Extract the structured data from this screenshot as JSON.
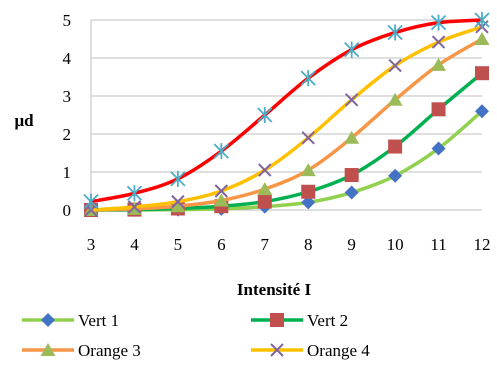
{
  "chart_data": {
    "type": "line",
    "title": "",
    "xlabel": "Intensité I",
    "ylabel": "μd",
    "x": [
      3,
      4,
      5,
      6,
      7,
      8,
      9,
      10,
      11,
      12
    ],
    "xlim": [
      3,
      12
    ],
    "ylim": [
      0,
      5
    ],
    "xticks": [
      3,
      4,
      5,
      6,
      7,
      8,
      9,
      10,
      11,
      12
    ],
    "yticks": [
      0,
      1,
      2,
      3,
      4,
      5
    ],
    "grid": "horizontal",
    "legend_position": "bottom",
    "series": [
      {
        "name": "Vert 1",
        "color": "#92d050",
        "marker": "diamond",
        "marker_color": "#4472c4",
        "values": [
          0.0,
          0.0,
          0.01,
          0.03,
          0.09,
          0.2,
          0.46,
          0.9,
          1.62,
          2.6
        ]
      },
      {
        "name": "Vert 2",
        "color": "#00b050",
        "marker": "square",
        "marker_color": "#c0504d",
        "values": [
          0.0,
          0.01,
          0.04,
          0.1,
          0.22,
          0.48,
          0.92,
          1.67,
          2.65,
          3.6
        ]
      },
      {
        "name": "Orange 3",
        "color": "#f79646",
        "marker": "triangle",
        "marker_color": "#9bbb59",
        "values": [
          0.0,
          0.03,
          0.1,
          0.25,
          0.55,
          1.05,
          1.9,
          2.9,
          3.82,
          4.5
        ]
      },
      {
        "name": "Orange 4",
        "color": "#ffc000",
        "marker": "x",
        "marker_color": "#8064a2",
        "values": [
          0.0,
          0.08,
          0.22,
          0.5,
          1.05,
          1.9,
          2.9,
          3.8,
          4.42,
          4.82
        ]
      },
      {
        "name": "",
        "color": "#ff0000",
        "marker": "star",
        "marker_color": "#4bacc6",
        "values": [
          0.22,
          0.44,
          0.82,
          1.55,
          2.5,
          3.47,
          4.22,
          4.67,
          4.93,
          5.0
        ]
      }
    ]
  }
}
